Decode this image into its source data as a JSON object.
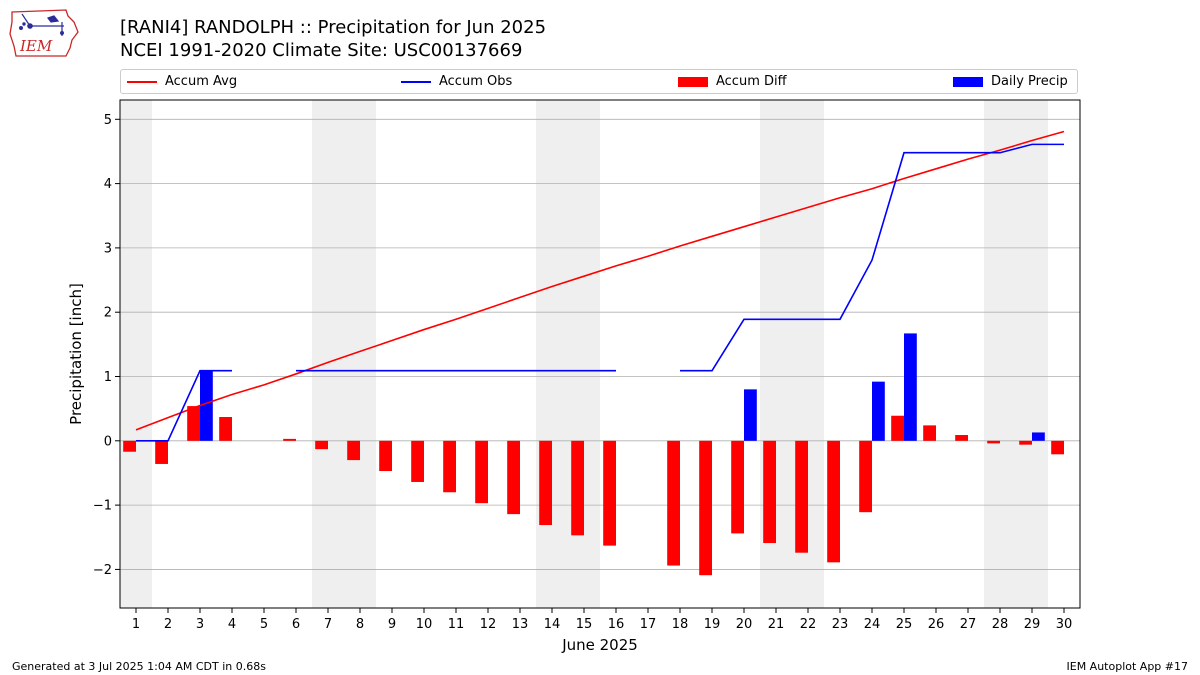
{
  "header": {
    "title_line1": "[RANI4] RANDOLPH :: Precipitation for Jun 2025",
    "title_line2": "NCEI 1991-2020 Climate Site: USC00137669",
    "logo_text": "IEM"
  },
  "footer": {
    "generated": "Generated at 3 Jul 2025 1:04 AM CDT in 0.68s",
    "app": "IEM Autoplot App #17"
  },
  "legend": {
    "placement": "top",
    "items": [
      {
        "label": "Accum Avg",
        "kind": "line",
        "color": "#ff0000"
      },
      {
        "label": "Accum Obs",
        "kind": "line",
        "color": "#0000ff"
      },
      {
        "label": "Accum Diff",
        "kind": "bar",
        "color": "#ff0000"
      },
      {
        "label": "Daily Precip",
        "kind": "bar",
        "color": "#0000ff"
      }
    ]
  },
  "chart_data": {
    "type": "bar",
    "xlabel": "June 2025",
    "ylabel": "Precipitation [inch]",
    "ylim": [
      -2.6,
      5.3
    ],
    "yticks": [
      -2,
      -1,
      0,
      1,
      2,
      3,
      4,
      5
    ],
    "ytick_labels": [
      "−2",
      "−1",
      "0",
      "1",
      "2",
      "3",
      "4",
      "5"
    ],
    "xlim": [
      0.5,
      30.5
    ],
    "days": [
      1,
      2,
      3,
      4,
      5,
      6,
      7,
      8,
      9,
      10,
      11,
      12,
      13,
      14,
      15,
      16,
      17,
      18,
      19,
      20,
      21,
      22,
      23,
      24,
      25,
      26,
      27,
      28,
      29,
      30
    ],
    "x_tick_labels": [
      "1",
      "2",
      "3",
      "4",
      "5",
      "6",
      "7",
      "8",
      "9",
      "10",
      "11",
      "12",
      "13",
      "14",
      "15",
      "16",
      "17",
      "18",
      "19",
      "20",
      "21",
      "22",
      "23",
      "24",
      "25",
      "26",
      "27",
      "28",
      "29",
      "30"
    ],
    "weekend_shading": [
      [
        0.5,
        1.5
      ],
      [
        6.5,
        8.5
      ],
      [
        13.5,
        15.5
      ],
      [
        20.5,
        22.5
      ],
      [
        27.5,
        29.5
      ]
    ],
    "grid": "horizontal",
    "colors": {
      "avg": "#ff0000",
      "obs": "#0000ff",
      "shade": "#efefef",
      "grid": "#b0b0b0"
    },
    "series": [
      {
        "name": "Accum Avg",
        "kind": "line",
        "x": [
          1,
          2,
          3,
          4,
          5,
          6,
          7,
          8,
          9,
          10,
          11,
          12,
          13,
          14,
          15,
          16,
          17,
          18,
          19,
          20,
          21,
          22,
          23,
          24,
          25,
          26,
          27,
          28,
          29,
          30
        ],
        "values": [
          0.17,
          0.36,
          0.55,
          0.72,
          0.87,
          1.04,
          1.22,
          1.39,
          1.56,
          1.73,
          1.89,
          2.06,
          2.23,
          2.4,
          2.56,
          2.72,
          2.87,
          3.03,
          3.18,
          3.33,
          3.48,
          3.63,
          3.78,
          3.92,
          4.08,
          4.23,
          4.38,
          4.52,
          4.67,
          4.81
        ]
      },
      {
        "name": "Accum Obs",
        "kind": "line",
        "segments": [
          {
            "x": [
              1,
              2,
              3,
              4
            ],
            "values": [
              0.0,
              0.0,
              1.09,
              1.09
            ]
          },
          {
            "x": [
              6,
              7,
              8,
              9,
              10,
              11,
              12,
              13,
              14,
              15,
              16
            ],
            "values": [
              1.09,
              1.09,
              1.09,
              1.09,
              1.09,
              1.09,
              1.09,
              1.09,
              1.09,
              1.09,
              1.09
            ]
          },
          {
            "x": [
              18,
              19,
              20,
              21,
              22,
              23,
              24,
              25,
              26,
              27,
              28,
              29,
              30
            ],
            "values": [
              1.09,
              1.09,
              1.89,
              1.89,
              1.89,
              1.89,
              2.81,
              4.48,
              4.48,
              4.48,
              4.48,
              4.61,
              4.61
            ]
          }
        ]
      },
      {
        "name": "Accum Diff",
        "kind": "bar",
        "x": [
          1,
          2,
          3,
          4,
          6,
          7,
          8,
          9,
          10,
          11,
          12,
          13,
          14,
          15,
          16,
          18,
          19,
          20,
          21,
          22,
          23,
          24,
          25,
          26,
          27,
          28,
          29,
          30
        ],
        "values": [
          -0.17,
          -0.36,
          0.54,
          0.37,
          0.03,
          -0.13,
          -0.3,
          -0.47,
          -0.64,
          -0.8,
          -0.97,
          -1.14,
          -1.31,
          -1.47,
          -1.63,
          -1.94,
          -2.09,
          -1.44,
          -1.59,
          -1.74,
          -1.89,
          -1.11,
          0.39,
          0.24,
          0.09,
          -0.04,
          -0.06,
          -0.21
        ]
      },
      {
        "name": "Daily Precip",
        "kind": "bar",
        "x": [
          3,
          20,
          24,
          25,
          29
        ],
        "values": [
          1.09,
          0.8,
          0.92,
          1.67,
          0.13
        ]
      }
    ]
  }
}
